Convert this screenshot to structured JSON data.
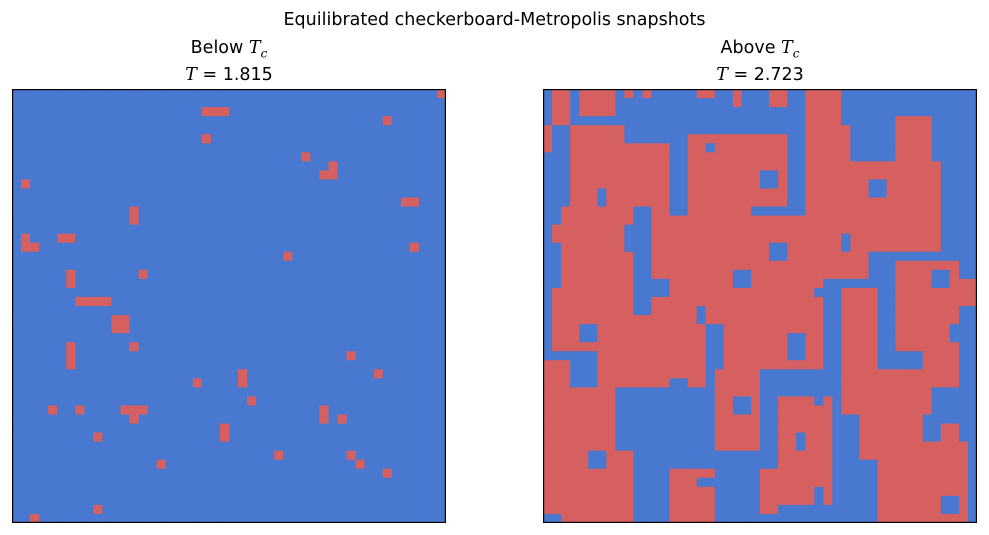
{
  "chart_data": [
    {
      "type": "heatmap",
      "suptitle": "Equilibrated checkerboard-Metropolis snapshots",
      "title_line1_prefix": "Below ",
      "title_line1_symbol": "T",
      "title_line1_sub": "c",
      "title_line2_symbol": "T",
      "title_line2_value": "= 1.815",
      "T": 1.815,
      "lattice_size": 48,
      "colors": {
        "spin_down": "#4878cf",
        "spin_up": "#d65f5f"
      },
      "axes_ticks": "none",
      "spin_up_sites": [
        [
          0,
          47
        ],
        [
          2,
          21
        ],
        [
          2,
          22
        ],
        [
          2,
          23
        ],
        [
          3,
          41
        ],
        [
          5,
          21
        ],
        [
          7,
          32
        ],
        [
          8,
          35
        ],
        [
          9,
          34
        ],
        [
          9,
          35
        ],
        [
          10,
          1
        ],
        [
          12,
          43
        ],
        [
          12,
          44
        ],
        [
          13,
          13
        ],
        [
          14,
          13
        ],
        [
          16,
          1
        ],
        [
          16,
          5
        ],
        [
          16,
          6
        ],
        [
          17,
          1
        ],
        [
          17,
          2
        ],
        [
          17,
          44
        ],
        [
          18,
          30
        ],
        [
          20,
          6
        ],
        [
          20,
          14
        ],
        [
          21,
          6
        ],
        [
          23,
          7
        ],
        [
          23,
          8
        ],
        [
          23,
          9
        ],
        [
          23,
          10
        ],
        [
          25,
          11
        ],
        [
          25,
          12
        ],
        [
          26,
          11
        ],
        [
          26,
          12
        ],
        [
          28,
          13
        ],
        [
          28,
          6
        ],
        [
          29,
          6
        ],
        [
          29,
          37
        ],
        [
          30,
          6
        ],
        [
          31,
          40
        ],
        [
          31,
          25
        ],
        [
          32,
          25
        ],
        [
          32,
          20
        ],
        [
          34,
          26
        ],
        [
          35,
          4
        ],
        [
          35,
          7
        ],
        [
          35,
          12
        ],
        [
          35,
          13
        ],
        [
          35,
          14
        ],
        [
          35,
          34
        ],
        [
          36,
          13
        ],
        [
          36,
          34
        ],
        [
          36,
          36
        ],
        [
          37,
          23
        ],
        [
          38,
          23
        ],
        [
          38,
          9
        ],
        [
          40,
          37
        ],
        [
          40,
          29
        ],
        [
          41,
          38
        ],
        [
          41,
          16
        ],
        [
          42,
          41
        ],
        [
          46,
          9
        ],
        [
          47,
          2
        ]
      ]
    },
    {
      "type": "heatmap",
      "title_line1_prefix": "Above ",
      "title_line1_symbol": "T",
      "title_line1_sub": "c",
      "title_line2_symbol": "T",
      "title_line2_value": "= 2.723",
      "T": 2.723,
      "lattice_size": 48,
      "colors": {
        "spin_down": "#4878cf",
        "spin_up": "#d65f5f"
      },
      "axes_ticks": "none",
      "up_rects": [
        [
          0,
          1,
          4,
          2
        ],
        [
          0,
          4,
          3,
          4
        ],
        [
          0,
          9,
          2,
          1
        ],
        [
          0,
          11,
          1,
          1
        ],
        [
          0,
          17,
          1,
          2
        ],
        [
          0,
          21,
          2,
          1
        ],
        [
          0,
          25,
          2,
          2
        ],
        [
          0,
          29,
          19,
          4
        ],
        [
          4,
          0,
          3,
          1
        ],
        [
          4,
          3,
          9,
          6
        ],
        [
          6,
          9,
          7,
          5
        ],
        [
          5,
          16,
          8,
          11
        ],
        [
          4,
          29,
          12,
          5
        ],
        [
          8,
          34,
          10,
          10
        ],
        [
          3,
          39,
          6,
          4
        ],
        [
          13,
          2,
          14,
          8
        ],
        [
          13,
          12,
          13,
          11
        ],
        [
          14,
          22,
          11,
          9
        ],
        [
          12,
          30,
          9,
          6
        ],
        [
          22,
          1,
          7,
          5
        ],
        [
          25,
          6,
          8,
          12
        ],
        [
          23,
          20,
          8,
          11
        ],
        [
          22,
          33,
          14,
          4
        ],
        [
          30,
          0,
          17,
          3
        ],
        [
          33,
          3,
          12,
          5
        ],
        [
          31,
          19,
          9,
          5
        ],
        [
          34,
          26,
          12,
          6
        ],
        [
          31,
          35,
          10,
          8
        ],
        [
          37,
          37,
          11,
          9
        ],
        [
          40,
          2,
          8,
          8
        ],
        [
          42,
          14,
          6,
          5
        ],
        [
          42,
          24,
          5,
          2
        ],
        [
          39,
          44,
          9,
          3
        ],
        [
          19,
          39,
          10,
          7
        ],
        [
          27,
          42,
          6,
          4
        ],
        [
          21,
          44,
          3,
          4
        ],
        [
          15,
          1,
          2,
          1
        ]
      ],
      "down_rects": [
        [
          1,
          9,
          2,
          1
        ],
        [
          2,
          13,
          1,
          2
        ],
        [
          3,
          34,
          2,
          2
        ],
        [
          6,
          18,
          1,
          1
        ],
        [
          9,
          24,
          2,
          2
        ],
        [
          11,
          6,
          2,
          1
        ],
        [
          12,
          14,
          2,
          2
        ],
        [
          15,
          9,
          3,
          2
        ],
        [
          17,
          25,
          2,
          2
        ],
        [
          16,
          33,
          2,
          1
        ],
        [
          18,
          37,
          3,
          2
        ],
        [
          20,
          21,
          2,
          2
        ],
        [
          21,
          12,
          2,
          2
        ],
        [
          22,
          30,
          1,
          2
        ],
        [
          24,
          17,
          2,
          1
        ],
        [
          26,
          4,
          2,
          2
        ],
        [
          27,
          27,
          3,
          2
        ],
        [
          29,
          40,
          2,
          2
        ],
        [
          32,
          14,
          1,
          2
        ],
        [
          33,
          30,
          2,
          1
        ],
        [
          34,
          21,
          2,
          2
        ],
        [
          36,
          9,
          1,
          2
        ],
        [
          36,
          42,
          3,
          2
        ],
        [
          38,
          28,
          2,
          1
        ],
        [
          40,
          5,
          2,
          2
        ],
        [
          41,
          35,
          2,
          2
        ],
        [
          43,
          17,
          1,
          2
        ],
        [
          44,
          30,
          2,
          1
        ],
        [
          45,
          44,
          2,
          2
        ],
        [
          46,
          12,
          1,
          1
        ],
        [
          20,
          43,
          2,
          2
        ],
        [
          26,
          45,
          2,
          1
        ],
        [
          10,
          36,
          2,
          2
        ]
      ]
    }
  ]
}
